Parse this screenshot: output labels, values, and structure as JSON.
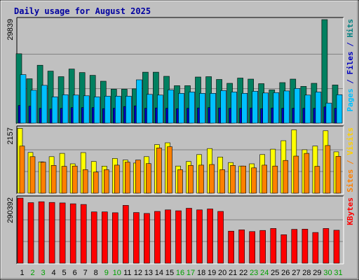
{
  "chart_data": {
    "type": "bar",
    "title": "Daily usage for August 2025",
    "categories": [
      "1",
      "2",
      "3",
      "4",
      "5",
      "6",
      "7",
      "8",
      "9",
      "10",
      "11",
      "12",
      "13",
      "14",
      "15",
      "16",
      "17",
      "18",
      "19",
      "20",
      "21",
      "22",
      "23",
      "24",
      "25",
      "26",
      "27",
      "28",
      "29",
      "30",
      "31"
    ],
    "weekend_days": [
      "2",
      "3",
      "9",
      "10",
      "16",
      "17",
      "23",
      "24",
      "30",
      "31"
    ],
    "panels": [
      {
        "id": "hits",
        "label_parts": [
          {
            "text": "Pages",
            "color": "#00c0ff"
          },
          {
            "text": " / ",
            "color": "#0000c0"
          },
          {
            "text": "Files",
            "color": "#0000c0"
          },
          {
            "text": " / ",
            "color": "#0000c0"
          },
          {
            "text": "Hits",
            "color": "#008080"
          }
        ],
        "ymax_label": "29839",
        "ymax": 29839,
        "series": [
          {
            "name": "Hits",
            "color": "#008060",
            "values": [
              20000,
              12800,
              16700,
              15000,
              13400,
              15600,
              14600,
              13800,
              12100,
              9800,
              9800,
              9900,
              14700,
              14700,
              13500,
              10800,
              10800,
              13300,
              13400,
              12600,
              11500,
              13000,
              12700,
              11400,
              9600,
              11700,
              12700,
              10600,
              11500,
              29839,
              11000
            ]
          },
          {
            "name": "Files",
            "color": "#0000c0",
            "values": [
              5100,
              4900,
              4300,
              4100,
              4300,
              4500,
              4500,
              4500,
              4200,
              4300,
              4800,
              5000,
              4300,
              4400,
              4300,
              4200,
              4300,
              4400,
              4500,
              4400,
              4300,
              4300,
              4400,
              4200,
              4400,
              4300,
              4300,
              4300,
              4300,
              4700,
              4300
            ]
          },
          {
            "name": "Pages",
            "color": "#00c0ff",
            "values": [
              14000,
              9500,
              10900,
              7600,
              8200,
              8100,
              7900,
              7600,
              7800,
              7800,
              7800,
              12500,
              8300,
              8100,
              9600,
              8600,
              9000,
              8600,
              8600,
              9400,
              9000,
              8600,
              9200,
              8700,
              8800,
              9300,
              10000,
              8100,
              9000,
              5800,
              8200
            ]
          }
        ]
      },
      {
        "id": "visits",
        "label_parts": [
          {
            "text": "Sites",
            "color": "#ff8000"
          },
          {
            "text": " / ",
            "color": "#ff8000"
          },
          {
            "text": "Visits",
            "color": "#ffd000"
          }
        ],
        "ymax_label": "2157",
        "ymax": 2157,
        "series": [
          {
            "name": "Visits",
            "color": "#ffff00",
            "values": [
              2150,
              1350,
              1040,
              1210,
              1320,
              975,
              1345,
              1050,
              898,
              1150,
              1100,
              1000,
              1210,
              1610,
              1670,
              900,
              1050,
              1280,
              1480,
              1200,
              1015,
              900,
              975,
              1280,
              1460,
              1740,
              2100,
              1440,
              1560,
              2070,
              1370
            ]
          },
          {
            "name": "Sites",
            "color": "#ff8000",
            "values": [
              1560,
              1210,
              1030,
              920,
              890,
              900,
              780,
              700,
              780,
              930,
              1030,
              1100,
              980,
              1500,
              1540,
              780,
              920,
              930,
              950,
              780,
              920,
              900,
              840,
              930,
              900,
              1085,
              1230,
              1320,
              890,
              1580,
              1220
            ]
          }
        ]
      },
      {
        "id": "kbytes",
        "label_parts": [
          {
            "text": "KBytes",
            "color": "#ff0000"
          }
        ],
        "ymax_label": "290392",
        "ymax": 290392,
        "series": [
          {
            "name": "KBytes",
            "color": "#ff0000",
            "values": [
              290392,
              270000,
              274000,
              271000,
              269000,
              265000,
              262000,
              229000,
              229000,
              225000,
              258000,
              226000,
              222000,
              231000,
              238000,
              234000,
              245000,
              238000,
              242000,
              231000,
              143000,
              149000,
              141000,
              146000,
              155000,
              127000,
              151000,
              152000,
              137000,
              155000,
              147000
            ]
          }
        ]
      }
    ]
  }
}
